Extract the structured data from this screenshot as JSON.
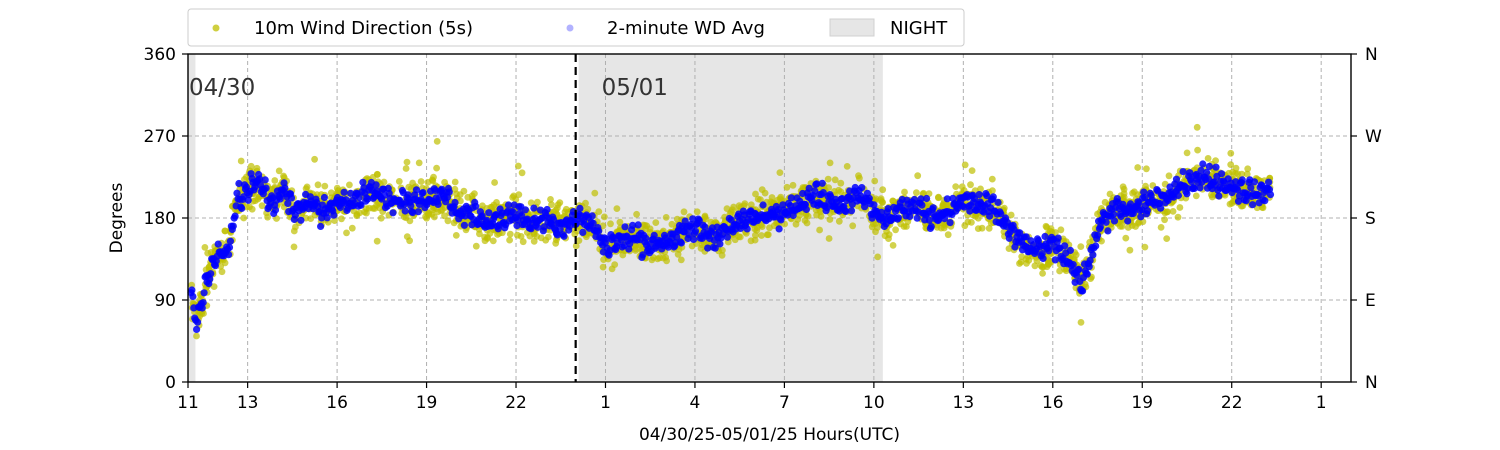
{
  "chart_data": {
    "type": "scatter",
    "xlabel": "04/30/25-05/01/25  Hours(UTC)",
    "ylabel": "Degrees",
    "x_range_hours": [
      11,
      50
    ],
    "ylim": [
      0,
      360
    ],
    "grid": true,
    "legend_placement": "top-left, above plot",
    "x_ticks": [
      {
        "hour": 11,
        "label": "11"
      },
      {
        "hour": 13,
        "label": "13"
      },
      {
        "hour": 16,
        "label": "16"
      },
      {
        "hour": 19,
        "label": "19"
      },
      {
        "hour": 22,
        "label": "22"
      },
      {
        "hour": 25,
        "label": "1"
      },
      {
        "hour": 28,
        "label": "4"
      },
      {
        "hour": 31,
        "label": "7"
      },
      {
        "hour": 34,
        "label": "10"
      },
      {
        "hour": 37,
        "label": "13"
      },
      {
        "hour": 40,
        "label": "16"
      },
      {
        "hour": 43,
        "label": "19"
      },
      {
        "hour": 46,
        "label": "22"
      },
      {
        "hour": 49,
        "label": "1"
      }
    ],
    "y_ticks_left": [
      {
        "value": 0,
        "label": "0"
      },
      {
        "value": 90,
        "label": "90"
      },
      {
        "value": 180,
        "label": "180"
      },
      {
        "value": 270,
        "label": "270"
      },
      {
        "value": 360,
        "label": "360"
      }
    ],
    "y_ticks_right": [
      {
        "value": 0,
        "label": "N"
      },
      {
        "value": 90,
        "label": "E"
      },
      {
        "value": 180,
        "label": "S"
      },
      {
        "value": 270,
        "label": "W"
      },
      {
        "value": 360,
        "label": "N"
      }
    ],
    "midnight_hour": 24,
    "day_labels": [
      {
        "hour": 11,
        "label": "04/30"
      },
      {
        "hour": 24,
        "label": "05/01"
      }
    ],
    "night_shading": [
      {
        "start_hour": 11,
        "end_hour": 11.25
      },
      {
        "start_hour": 24.1,
        "end_hour": 34.3
      }
    ],
    "series": [
      {
        "name": "10m Wind Direction (5s)",
        "color": "#bfbf00",
        "spread_deg": 18
      },
      {
        "name": "2-minute WD Avg",
        "color": "#0000ff",
        "trend": {
          "hour": [
            11.1,
            11.3,
            11.6,
            12.0,
            12.4,
            12.6,
            13.0,
            13.4,
            13.8,
            14.2,
            14.6,
            15.0,
            15.5,
            16.0,
            16.5,
            17.0,
            17.5,
            18.0,
            18.5,
            19.0,
            19.5,
            20.0,
            20.5,
            21.0,
            21.5,
            22.0,
            22.5,
            23.0,
            23.5,
            24.0,
            24.5,
            25.0,
            25.5,
            26.0,
            26.5,
            27.0,
            27.5,
            28.0,
            28.5,
            29.0,
            29.5,
            30.0,
            30.5,
            31.0,
            31.5,
            32.0,
            32.5,
            33.0,
            33.5,
            34.0,
            34.5,
            35.0,
            35.5,
            36.0,
            36.5,
            37.0,
            37.5,
            38.0,
            38.5,
            39.0,
            39.5,
            40.0,
            40.5,
            41.0,
            41.3,
            41.6,
            41.9,
            42.2,
            42.5,
            43.0,
            43.5,
            44.0,
            44.5,
            45.0,
            45.5,
            46.0,
            46.5,
            47.0,
            47.3
          ],
          "deg": [
            100,
            65,
            110,
            140,
            150,
            195,
            210,
            220,
            195,
            210,
            185,
            200,
            185,
            200,
            195,
            210,
            205,
            200,
            195,
            200,
            205,
            190,
            185,
            175,
            180,
            185,
            175,
            180,
            170,
            180,
            175,
            150,
            155,
            160,
            150,
            155,
            160,
            170,
            160,
            165,
            175,
            180,
            185,
            190,
            195,
            205,
            200,
            195,
            210,
            185,
            180,
            190,
            195,
            180,
            185,
            200,
            195,
            190,
            170,
            150,
            145,
            150,
            135,
            110,
            140,
            175,
            185,
            190,
            185,
            195,
            200,
            205,
            220,
            225,
            220,
            215,
            210,
            205,
            215
          ]
        }
      },
      {
        "name": "NIGHT",
        "color": "#e6e6e6"
      }
    ]
  }
}
